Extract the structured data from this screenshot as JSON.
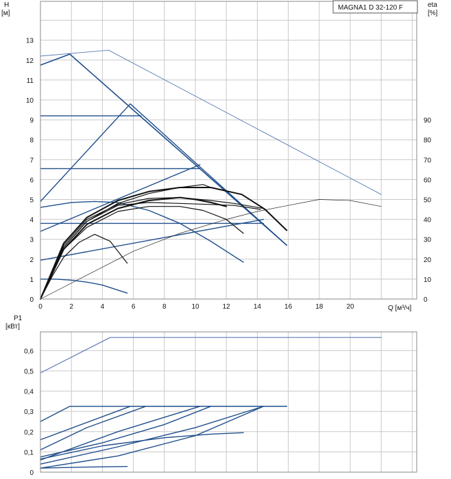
{
  "model_label": "MAGNA1 D 32-120 F",
  "chart_data": [
    {
      "type": "line",
      "title": "",
      "axes": {
        "x": {
          "label": "Q [м³/ч]",
          "range": [
            0,
            24
          ],
          "ticks": [
            0,
            2,
            4,
            6,
            8,
            10,
            12,
            14,
            16,
            18,
            20
          ]
        },
        "y_left": {
          "label_top": "H",
          "label_unit": "[м]",
          "range": [
            0,
            15
          ],
          "ticks": [
            0,
            1,
            2,
            3,
            4,
            5,
            6,
            7,
            8,
            9,
            10,
            11,
            12,
            13
          ]
        },
        "y_right": {
          "label_top": "eta",
          "label_unit": "[%]",
          "range": [
            0,
            150
          ],
          "ticks": [
            0,
            10,
            20,
            30,
            40,
            50,
            60,
            70,
            80,
            90
          ]
        }
      },
      "grid": true,
      "colors": {
        "head_curves": "#1f4e8c",
        "efficiency_curves": "#111111",
        "limit_line": "#5a7bb5",
        "grid": "#c8c8c8"
      },
      "series": [
        {
          "role": "max_limit_thin",
          "x": [
            0,
            4.4,
            22
          ],
          "y": [
            12.2,
            12.5,
            5.25
          ]
        },
        {
          "role": "prop_pressure_max",
          "x": [
            0,
            1.9,
            15.9
          ],
          "y": [
            11.75,
            12.3,
            2.7
          ]
        },
        {
          "role": "constant_pressure",
          "x": [
            0,
            6.5
          ],
          "y": [
            9.2,
            9.2
          ]
        },
        {
          "role": "constant_pressure",
          "x": [
            0,
            10.3
          ],
          "y": [
            6.55,
            6.55
          ]
        },
        {
          "role": "constant_pressure",
          "x": [
            0,
            14.4
          ],
          "y": [
            3.8,
            3.8
          ]
        },
        {
          "role": "prop_pressure_line",
          "x": [
            0,
            5.8,
            15.9
          ],
          "y": [
            4.9,
            9.8,
            2.7
          ]
        },
        {
          "role": "prop_pressure_line",
          "x": [
            0,
            10.3
          ],
          "y": [
            3.4,
            6.75
          ]
        },
        {
          "role": "prop_pressure_line",
          "x": [
            0,
            14.4
          ],
          "y": [
            1.95,
            4.0
          ]
        },
        {
          "role": "speed_curve",
          "x": [
            0,
            2,
            3.5,
            5,
            7,
            9,
            11,
            13.1
          ],
          "y": [
            4.6,
            4.85,
            4.9,
            4.85,
            4.45,
            3.8,
            2.9,
            1.85
          ]
        },
        {
          "role": "speed_curve",
          "x": [
            0,
            1,
            2,
            3,
            4,
            5,
            5.6
          ],
          "y": [
            1.0,
            1.0,
            0.95,
            0.85,
            0.7,
            0.45,
            0.3
          ]
        },
        {
          "role": "efficiency_thin",
          "x": [
            0,
            3,
            6,
            9,
            12,
            14,
            16,
            18,
            20,
            22
          ],
          "y": [
            0,
            1.2,
            2.4,
            3.3,
            4.0,
            4.4,
            4.7,
            5.0,
            4.95,
            4.65
          ]
        },
        {
          "role": "efficiency",
          "x": [
            0,
            0.8,
            1.5,
            2.5,
            3.5,
            4.5,
            5.6
          ],
          "y": [
            0,
            1.2,
            2.1,
            2.85,
            3.25,
            2.9,
            1.8
          ]
        },
        {
          "role": "efficiency",
          "x": [
            0,
            1.5,
            3,
            5,
            7,
            9,
            10.5,
            12,
            13.1
          ],
          "y": [
            0,
            2.5,
            3.6,
            4.4,
            4.65,
            4.65,
            4.45,
            4.0,
            3.3
          ]
        },
        {
          "role": "efficiency",
          "x": [
            0,
            1.5,
            3,
            5,
            7,
            9,
            10.5,
            11
          ],
          "y": [
            0,
            2.6,
            3.9,
            4.8,
            5.3,
            5.6,
            5.75,
            5.6
          ]
        },
        {
          "role": "efficiency",
          "x": [
            0,
            1.5,
            3,
            5,
            7,
            9,
            11,
            12.5,
            14.2
          ],
          "y": [
            0,
            2.6,
            3.9,
            4.7,
            4.85,
            4.8,
            4.75,
            4.7,
            4.5
          ]
        },
        {
          "role": "efficiency",
          "x": [
            0,
            1.5,
            3,
            5,
            7,
            9,
            11,
            12.5,
            14.4
          ],
          "y": [
            0,
            2.7,
            4.0,
            4.75,
            5.05,
            5.1,
            4.95,
            4.8,
            4.55
          ]
        },
        {
          "role": "efficiency_bold",
          "x": [
            0,
            1.5,
            3,
            5,
            7,
            9,
            11,
            13,
            14.5,
            15.9
          ],
          "y": [
            0,
            2.8,
            4.1,
            4.95,
            5.4,
            5.6,
            5.6,
            5.25,
            4.5,
            3.45
          ]
        },
        {
          "role": "efficiency_bold",
          "x": [
            0,
            1.5,
            3,
            5,
            7,
            9,
            10,
            11,
            12
          ],
          "y": [
            0,
            2.5,
            3.75,
            4.55,
            4.95,
            5.1,
            5.0,
            4.85,
            4.65
          ]
        }
      ]
    },
    {
      "type": "line",
      "title": "",
      "axes": {
        "x": {
          "label": "",
          "range": [
            0,
            24
          ],
          "ticks": []
        },
        "y": {
          "label_top": "P1",
          "label_unit": "[кВт]",
          "range": [
            0,
            0.7
          ],
          "ticks": [
            0,
            0.1,
            0.2,
            0.3,
            0.4,
            0.5,
            0.6
          ],
          "tick_labels": [
            "0",
            "0,1",
            "0,2",
            "0,3",
            "0,4",
            "0,5",
            "0,6"
          ]
        }
      },
      "grid": true,
      "series": [
        {
          "role": "power_max",
          "x": [
            0,
            4.5,
            22
          ],
          "y": [
            0.49,
            0.665,
            0.665
          ]
        },
        {
          "role": "power",
          "x": [
            0,
            1.9,
            15.9
          ],
          "y": [
            0.25,
            0.325,
            0.325
          ]
        },
        {
          "role": "power",
          "x": [
            0,
            5.8,
            15.9
          ],
          "y": [
            0.16,
            0.325,
            0.325
          ]
        },
        {
          "role": "power",
          "x": [
            0,
            3,
            6.8,
            15.9
          ],
          "y": [
            0.11,
            0.22,
            0.325,
            0.325
          ]
        },
        {
          "role": "power",
          "x": [
            0,
            5,
            10.3,
            15.9
          ],
          "y": [
            0.06,
            0.2,
            0.325,
            0.325
          ]
        },
        {
          "role": "power",
          "x": [
            0,
            4,
            8,
            11,
            15.9
          ],
          "y": [
            0.075,
            0.145,
            0.235,
            0.325,
            0.325
          ]
        },
        {
          "role": "power",
          "x": [
            0,
            4,
            8,
            11,
            13.1
          ],
          "y": [
            0.065,
            0.13,
            0.17,
            0.188,
            0.195
          ]
        },
        {
          "role": "power",
          "x": [
            0,
            5,
            10,
            14.4,
            15.9
          ],
          "y": [
            0.04,
            0.125,
            0.22,
            0.325,
            0.325
          ]
        },
        {
          "role": "power",
          "x": [
            0,
            5,
            10,
            14.4,
            15.9
          ],
          "y": [
            0.02,
            0.08,
            0.18,
            0.325,
            0.325
          ]
        },
        {
          "role": "power",
          "x": [
            0,
            3,
            5.6
          ],
          "y": [
            0.02,
            0.025,
            0.028
          ]
        }
      ]
    }
  ]
}
